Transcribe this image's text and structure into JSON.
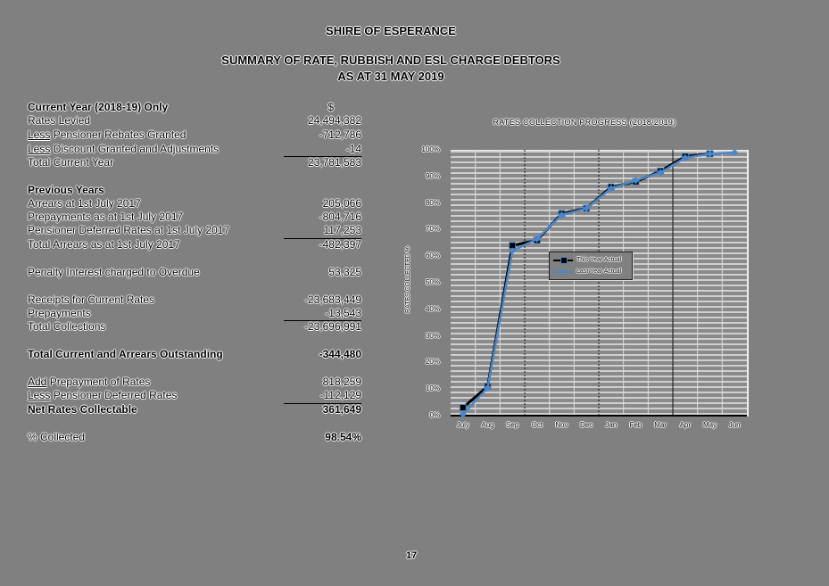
{
  "header": {
    "org": "SHIRE OF ESPERANCE",
    "title": "SUMMARY OF RATE, RUBBISH AND ESL CHARGE DEBTORS",
    "subtitle": "AS AT 31 MAY 2019"
  },
  "summary": {
    "currency_header": "$",
    "current_year": {
      "heading": "Current Year (2018-19) Only",
      "rows": [
        {
          "prefix": "",
          "label": "Rates Levied",
          "value": "24,494,382"
        },
        {
          "prefix": "Less",
          "label": " Pensioner Rebates Granted",
          "value": "-712,786"
        },
        {
          "prefix": "Less",
          "label": " Discount Granted and Adjustments",
          "value": "-14"
        }
      ],
      "total": {
        "label": "Total Current Year",
        "value": "23,781,583"
      }
    },
    "previous_years": {
      "heading": "Previous Years",
      "rows": [
        {
          "label": "Arrears at 1st July 2017",
          "value": "205,066"
        },
        {
          "label": "Prepayments as at 1st July 2017",
          "value": "-804,716"
        },
        {
          "label": "Pensioner Deferred Rates at 1st July 2017",
          "value": "117,253"
        }
      ],
      "total": {
        "label": "Total Arrears as at 1st July 2017",
        "value": "-482,397"
      }
    },
    "penalty": {
      "label": "Penalty Interest charged to Overdue",
      "value": "53,325"
    },
    "collections": {
      "rows": [
        {
          "label": "Receipts for Current Rates",
          "value": "-23,683,449"
        },
        {
          "label": "Prepayments",
          "value": "-13,543"
        }
      ],
      "total": {
        "label": "Total Collections",
        "value": "-23,696,991"
      }
    },
    "outstanding": {
      "label": "Total Current and Arrears Outstanding",
      "value": "-344,480"
    },
    "adjustments": {
      "rows": [
        {
          "prefix": "Add",
          "label": " Prepayment of Rates",
          "value": "818,259"
        },
        {
          "prefix": "Less",
          "label": " Pensioner Deferred Rates",
          "value": "-112,129"
        }
      ]
    },
    "net": {
      "label": "Net Rates Collectable",
      "value": "361,649"
    },
    "collected": {
      "label": "% Collected",
      "value": "98.54%"
    }
  },
  "chart_data": {
    "type": "line",
    "title": "RATES COLLECTION PROGRESS (2018/2019)",
    "xlabel": "",
    "ylabel": "RATES COLLECTED %",
    "ylim": [
      0,
      100
    ],
    "yticks": [
      "0%",
      "10%",
      "20%",
      "30%",
      "40%",
      "50%",
      "60%",
      "70%",
      "80%",
      "90%",
      "100%"
    ],
    "categories": [
      "July",
      "Aug",
      "Sep",
      "Oct",
      "Nov",
      "Dec",
      "Jan",
      "Feb",
      "Mar",
      "Apr",
      "May",
      "Jun"
    ],
    "series": [
      {
        "name": "This Year Actual",
        "color": "#000000",
        "marker": "square",
        "values": [
          3,
          11,
          64,
          66,
          76,
          78,
          86,
          88,
          92,
          97.5,
          98.5,
          null
        ]
      },
      {
        "name": "Last Year Actual",
        "color": "#4a86c8",
        "marker": "diamond",
        "values": [
          0.5,
          10.5,
          62,
          66.5,
          75.5,
          78,
          85.5,
          88.5,
          91.5,
          97,
          98.5,
          99
        ]
      }
    ],
    "grid": true,
    "legend_position": "inside-center-left"
  },
  "footer": {
    "page_number": "17"
  }
}
